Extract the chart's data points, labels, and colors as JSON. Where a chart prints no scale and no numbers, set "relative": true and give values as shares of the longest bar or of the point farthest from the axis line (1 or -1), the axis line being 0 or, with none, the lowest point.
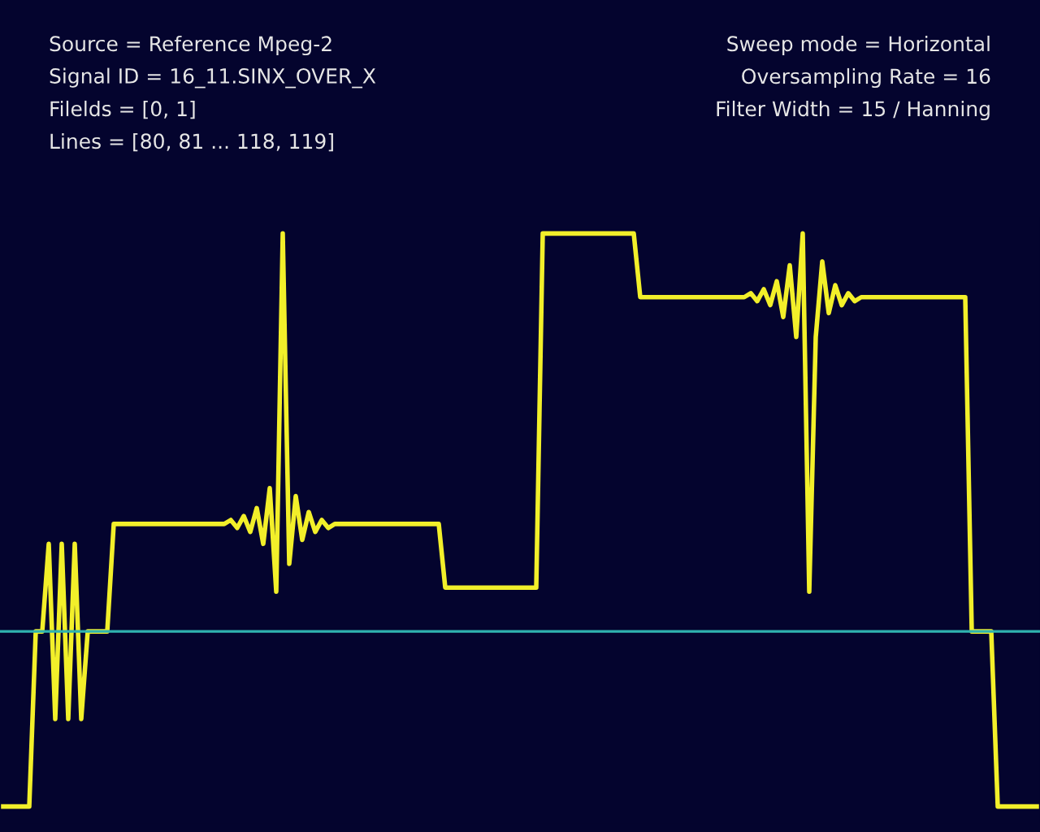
{
  "chart_data": {
    "type": "line",
    "relative": true,
    "color": "#f2ef2a",
    "ref_lines": [
      {
        "axis": "y",
        "value": 0,
        "color": "#2fb3b0"
      }
    ],
    "annotations": [
      "Source = Reference Mpeg-2",
      "Signal ID = 16_11.SINX_OVER_X",
      "Filelds = [0, 1]",
      "Lines = [80, 81 ... 118, 119]",
      "Sweep mode = Horizontal",
      "Oversampling Rate = 16",
      "Filter Width = 15 / Hanning"
    ],
    "categories": [
      null,
      null,
      null,
      null,
      null,
      null,
      null,
      null,
      null,
      null,
      null,
      null,
      null,
      null,
      null,
      null,
      null,
      null,
      null,
      null,
      null,
      null,
      null,
      null,
      null,
      null,
      null,
      null,
      null,
      null,
      null,
      null,
      null,
      null,
      null,
      null,
      null,
      null,
      null,
      null,
      null,
      null,
      null,
      null,
      null,
      null,
      null,
      null,
      null,
      null,
      null,
      null,
      null,
      null,
      null,
      null,
      null,
      null,
      null,
      null,
      null,
      null,
      null,
      null,
      null,
      null,
      null,
      null,
      null,
      null,
      null,
      null,
      null,
      null,
      null,
      null,
      null,
      null,
      null,
      null,
      null,
      null,
      null,
      null,
      null,
      null,
      null,
      null,
      null,
      null,
      null,
      null,
      null,
      null,
      null,
      null,
      null,
      null,
      null,
      null,
      null,
      null,
      null,
      null,
      null,
      null,
      null,
      null,
      null,
      null,
      null,
      null,
      null,
      null,
      null,
      null,
      null,
      null,
      null,
      null,
      null,
      null,
      null,
      null,
      null,
      null,
      null,
      null,
      null,
      null,
      null,
      null,
      null,
      null,
      null,
      null,
      null,
      null,
      null,
      null,
      null,
      null,
      null,
      null,
      null,
      null,
      null,
      null,
      null,
      null,
      null,
      null,
      null,
      null,
      null,
      null,
      null,
      null,
      null,
      null
    ],
    "values": [
      -0.44,
      -0.44,
      -0.44,
      -0.44,
      -0.44,
      0,
      0,
      0.22,
      -0.22,
      0.22,
      -0.22,
      0.22,
      -0.22,
      0,
      0,
      0,
      0,
      0.27,
      0.27,
      0.27,
      0.27,
      0.27,
      0.27,
      0.27,
      0.27,
      0.27,
      0.27,
      0.27,
      0.27,
      0.27,
      0.27,
      0.27,
      0.27,
      0.27,
      0.27,
      0.28,
      0.26,
      0.29,
      0.25,
      0.31,
      0.22,
      0.36,
      0.1,
      1.0,
      0.17,
      0.34,
      0.23,
      0.3,
      0.25,
      0.28,
      0.26,
      0.27,
      0.27,
      0.27,
      0.27,
      0.27,
      0.27,
      0.27,
      0.27,
      0.27,
      0.27,
      0.27,
      0.27,
      0.27,
      0.27,
      0.27,
      0.27,
      0.27,
      0.11,
      0.11,
      0.11,
      0.11,
      0.11,
      0.11,
      0.11,
      0.11,
      0.11,
      0.11,
      0.11,
      0.11,
      0.11,
      0.11,
      0.11,
      1.0,
      1.0,
      1.0,
      1.0,
      1.0,
      1.0,
      1.0,
      1.0,
      1.0,
      1.0,
      1.0,
      1.0,
      1.0,
      1.0,
      1.0,
      0.84,
      0.84,
      0.84,
      0.84,
      0.84,
      0.84,
      0.84,
      0.84,
      0.84,
      0.84,
      0.84,
      0.84,
      0.84,
      0.84,
      0.84,
      0.84,
      0.84,
      0.85,
      0.83,
      0.86,
      0.82,
      0.88,
      0.79,
      0.92,
      0.74,
      1.0,
      0.1,
      0.74,
      0.93,
      0.8,
      0.87,
      0.82,
      0.85,
      0.83,
      0.84,
      0.84,
      0.84,
      0.84,
      0.84,
      0.84,
      0.84,
      0.84,
      0.84,
      0.84,
      0.84,
      0.84,
      0.84,
      0.84,
      0.84,
      0.84,
      0.84,
      0,
      0,
      0,
      0,
      -0.44,
      -0.44,
      -0.44,
      -0.44,
      -0.44,
      -0.44,
      -0.44
    ]
  }
}
